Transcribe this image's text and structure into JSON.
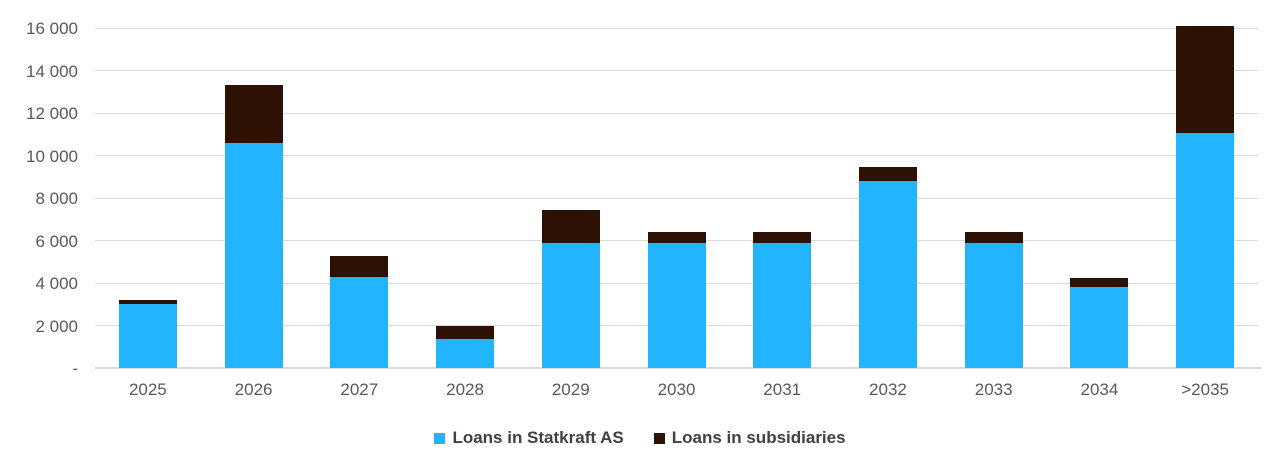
{
  "chart": {
    "background": "#FFFFFF",
    "grid_color": "#D9D9D9",
    "axis_color": "#D9D9D9",
    "tick_label_color": "#595959",
    "legend_text_color": "#404040"
  },
  "chart_data": {
    "type": "bar",
    "stacked": true,
    "title": "",
    "xlabel": "",
    "ylabel": "",
    "categories": [
      "2025",
      "2026",
      "2027",
      "2028",
      "2029",
      "2030",
      "2031",
      "2032",
      "2033",
      "2034",
      ">2035"
    ],
    "series": [
      {
        "name": "Loans in Statkraft AS",
        "color": "#22B4FC",
        "values": [
          3000,
          10600,
          4300,
          1350,
          5900,
          5900,
          5900,
          8800,
          5900,
          3800,
          11050
        ]
      },
      {
        "name": "Loans in subsidiaries",
        "color": "#2D1105",
        "values": [
          200,
          2700,
          950,
          650,
          1550,
          500,
          500,
          650,
          500,
          450,
          5050
        ]
      }
    ],
    "totals": [
      3200,
      13300,
      5250,
      2000,
      7450,
      6400,
      6400,
      9450,
      6400,
      4250,
      16100
    ],
    "ylim": [
      0,
      16000
    ],
    "y_ticks": [
      {
        "value": 16000,
        "label": "16 000"
      },
      {
        "value": 14000,
        "label": "14 000"
      },
      {
        "value": 12000,
        "label": "12 000"
      },
      {
        "value": 10000,
        "label": "10 000"
      },
      {
        "value": 8000,
        "label": "8 000"
      },
      {
        "value": 6000,
        "label": "6 000"
      },
      {
        "value": 4000,
        "label": "4 000"
      },
      {
        "value": 2000,
        "label": "2 000"
      },
      {
        "value": 0,
        "label": "-"
      }
    ],
    "grid": true,
    "legend_position": "bottom"
  }
}
